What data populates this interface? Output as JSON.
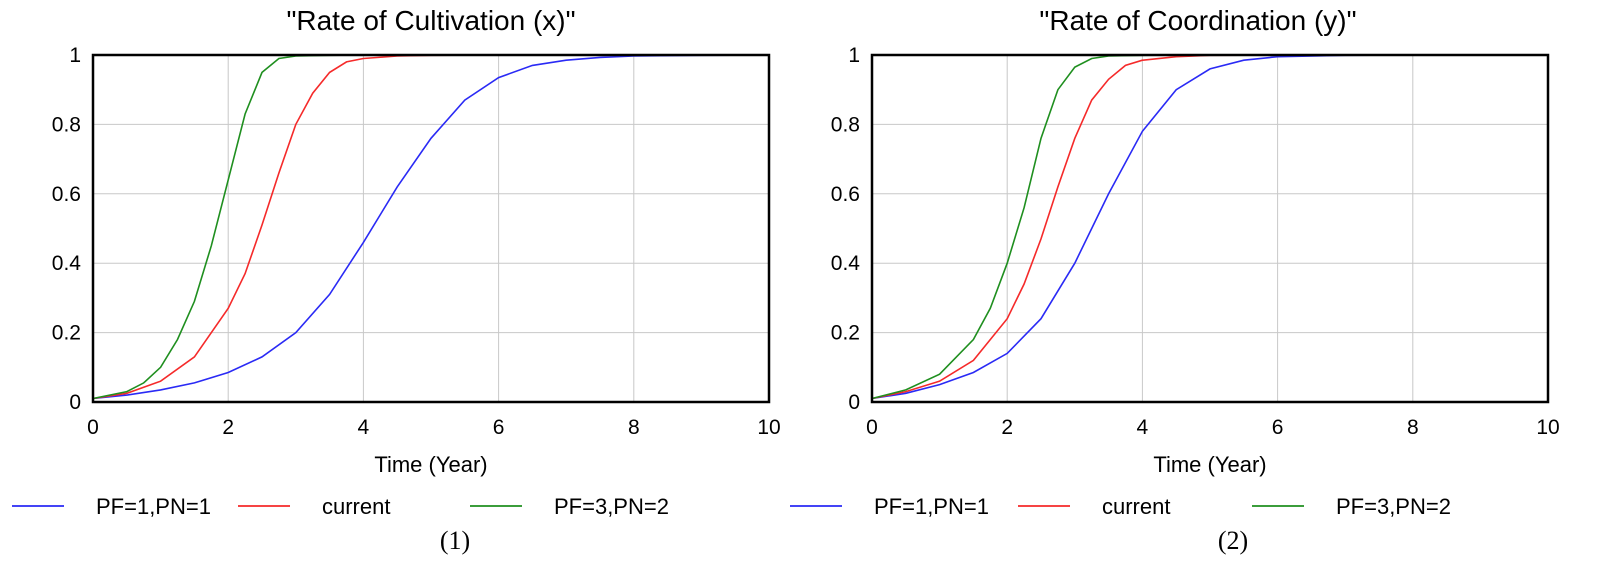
{
  "colors": {
    "PF=1,PN=1": "#2a2af5",
    "current": "#f52a2a",
    "PF=3,PN=2": "#1f8f1f"
  },
  "chart_data": [
    {
      "type": "line",
      "title": "\"Rate of Cultivation (x)\"",
      "xlabel": "Time (Year)",
      "ylabel": "",
      "xlim": [
        0,
        10
      ],
      "ylim": [
        0,
        1
      ],
      "xticks": [
        "0",
        "2",
        "4",
        "6",
        "8",
        "10"
      ],
      "yticks": [
        "0",
        "0.2",
        "0.4",
        "0.6",
        "0.8",
        "1"
      ],
      "grid": true,
      "legend": "bottom",
      "caption": "(1)",
      "series": [
        {
          "name": "PF=1,PN=1",
          "color": "#2a2af5",
          "x": [
            0,
            0.5,
            1,
            1.5,
            2,
            2.5,
            3,
            3.5,
            4,
            4.5,
            5,
            5.5,
            6,
            6.5,
            7,
            7.5,
            8,
            9,
            10
          ],
          "y": [
            0.01,
            0.02,
            0.035,
            0.055,
            0.085,
            0.13,
            0.2,
            0.31,
            0.46,
            0.62,
            0.76,
            0.87,
            0.935,
            0.97,
            0.985,
            0.993,
            0.997,
            0.999,
            1.0
          ]
        },
        {
          "name": "current",
          "color": "#f52a2a",
          "x": [
            0,
            0.5,
            1,
            1.5,
            2,
            2.25,
            2.5,
            2.75,
            3,
            3.25,
            3.5,
            3.75,
            4,
            4.5,
            5,
            6,
            8,
            10
          ],
          "y": [
            0.01,
            0.025,
            0.06,
            0.13,
            0.27,
            0.37,
            0.51,
            0.66,
            0.8,
            0.89,
            0.95,
            0.98,
            0.99,
            0.997,
            0.999,
            1.0,
            1.0,
            1.0
          ]
        },
        {
          "name": "PF=3,PN=2",
          "color": "#1f8f1f",
          "x": [
            0,
            0.5,
            0.75,
            1,
            1.25,
            1.5,
            1.75,
            2,
            2.25,
            2.5,
            2.75,
            3,
            3.5,
            4,
            5,
            6,
            8,
            10
          ],
          "y": [
            0.01,
            0.03,
            0.055,
            0.1,
            0.18,
            0.29,
            0.45,
            0.64,
            0.83,
            0.95,
            0.99,
            0.997,
            0.999,
            1.0,
            1.0,
            1.0,
            1.0,
            1.0
          ]
        }
      ]
    },
    {
      "type": "line",
      "title": "\"Rate of Coordination (y)\"",
      "xlabel": "Time (Year)",
      "ylabel": "",
      "xlim": [
        0,
        10
      ],
      "ylim": [
        0,
        1
      ],
      "xticks": [
        "0",
        "2",
        "4",
        "6",
        "8",
        "10"
      ],
      "yticks": [
        "0",
        "0.2",
        "0.4",
        "0.6",
        "0.8",
        "1"
      ],
      "grid": true,
      "legend": "bottom",
      "caption": "(2)",
      "series": [
        {
          "name": "PF=1,PN=1",
          "color": "#2a2af5",
          "x": [
            0,
            0.5,
            1,
            1.5,
            2,
            2.5,
            3,
            3.5,
            4,
            4.5,
            5,
            5.5,
            6,
            7,
            8,
            10
          ],
          "y": [
            0.01,
            0.025,
            0.05,
            0.085,
            0.14,
            0.24,
            0.4,
            0.6,
            0.78,
            0.9,
            0.96,
            0.985,
            0.995,
            0.999,
            1.0,
            1.0
          ]
        },
        {
          "name": "current",
          "color": "#f52a2a",
          "x": [
            0,
            0.5,
            1,
            1.5,
            2,
            2.25,
            2.5,
            2.75,
            3,
            3.25,
            3.5,
            3.75,
            4,
            4.5,
            5,
            6,
            8,
            10
          ],
          "y": [
            0.01,
            0.03,
            0.06,
            0.12,
            0.24,
            0.34,
            0.47,
            0.62,
            0.76,
            0.87,
            0.93,
            0.97,
            0.985,
            0.995,
            0.999,
            1.0,
            1.0,
            1.0
          ]
        },
        {
          "name": "PF=3,PN=2",
          "color": "#1f8f1f",
          "x": [
            0,
            0.5,
            1,
            1.5,
            1.75,
            2,
            2.25,
            2.5,
            2.75,
            3,
            3.25,
            3.5,
            4,
            4.5,
            5,
            6,
            8,
            10
          ],
          "y": [
            0.01,
            0.035,
            0.08,
            0.18,
            0.27,
            0.4,
            0.56,
            0.76,
            0.9,
            0.965,
            0.99,
            0.997,
            0.999,
            1.0,
            1.0,
            1.0,
            1.0,
            1.0
          ]
        }
      ]
    }
  ]
}
